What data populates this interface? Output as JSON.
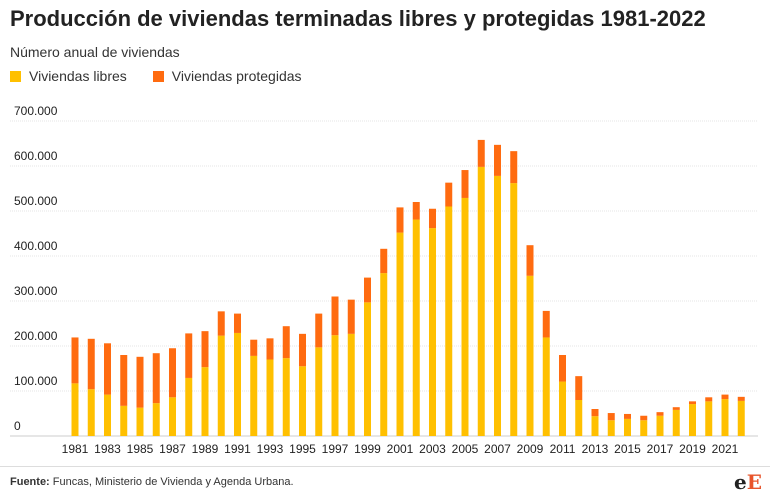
{
  "header": {
    "title": "Producción de viviendas terminadas libres y protegidas 1981-2022",
    "subtitle": "Número anual de viviendas"
  },
  "legend": {
    "items": [
      {
        "label": "Viviendas libres",
        "color": "#ffc000"
      },
      {
        "label": "Viviendas protegidas",
        "color": "#ff6b10"
      }
    ]
  },
  "footer": {
    "source_label": "Fuente:",
    "source_text": " Funcas, Ministerio de Vivienda y Agenda Urbana.",
    "logo_e": "e",
    "logo_f": "E"
  },
  "chart_data": {
    "type": "bar",
    "stacked": true,
    "title": "Producción de viviendas terminadas libres y protegidas 1981-2022",
    "subtitle": "Número anual de viviendas",
    "xlabel": "",
    "ylabel": "",
    "ylim": [
      0,
      700000
    ],
    "y_ticks": [
      0,
      100000,
      200000,
      300000,
      400000,
      500000,
      600000,
      700000
    ],
    "y_tick_labels": [
      "0",
      "100.000",
      "200.000",
      "300.000",
      "400.000",
      "500.000",
      "600.000",
      "700.000"
    ],
    "grid": true,
    "legend_position": "top-left",
    "categories": [
      1981,
      1982,
      1983,
      1984,
      1985,
      1986,
      1987,
      1988,
      1989,
      1990,
      1991,
      1992,
      1993,
      1994,
      1995,
      1996,
      1997,
      1998,
      1999,
      2000,
      2001,
      2002,
      2003,
      2004,
      2005,
      2006,
      2007,
      2008,
      2009,
      2010,
      2011,
      2012,
      2013,
      2014,
      2015,
      2016,
      2017,
      2018,
      2019,
      2020,
      2021,
      2022
    ],
    "x_tick_labels": [
      "1981",
      "1983",
      "1985",
      "1987",
      "1989",
      "1991",
      "1993",
      "1995",
      "1997",
      "1999",
      "2001",
      "2003",
      "2005",
      "2007",
      "2009",
      "2011",
      "2013",
      "2015",
      "2017",
      "2019",
      "2021"
    ],
    "series": [
      {
        "name": "Viviendas libres",
        "color": "#ffc000",
        "values": [
          117000,
          104000,
          92000,
          67000,
          63000,
          73000,
          86000,
          129000,
          153000,
          223000,
          229000,
          178000,
          170000,
          173000,
          155000,
          197000,
          224000,
          227000,
          297000,
          362000,
          452000,
          481000,
          462000,
          510000,
          529000,
          598000,
          578000,
          562000,
          356000,
          219000,
          121000,
          80000,
          44000,
          35000,
          38000,
          35000,
          45000,
          58000,
          71000,
          77000,
          82000,
          78000
        ]
      },
      {
        "name": "Viviendas protegidas",
        "color": "#ff6b10",
        "values": [
          102000,
          112000,
          114000,
          113000,
          113000,
          111000,
          109000,
          99000,
          80000,
          54000,
          43000,
          36000,
          47000,
          71000,
          72000,
          75000,
          86000,
          76000,
          55000,
          54000,
          56000,
          39000,
          43000,
          53000,
          62000,
          60000,
          69000,
          71000,
          68000,
          59000,
          59000,
          53000,
          16000,
          16000,
          11000,
          10000,
          8000,
          6000,
          6000,
          9000,
          10000,
          9000
        ]
      }
    ]
  }
}
